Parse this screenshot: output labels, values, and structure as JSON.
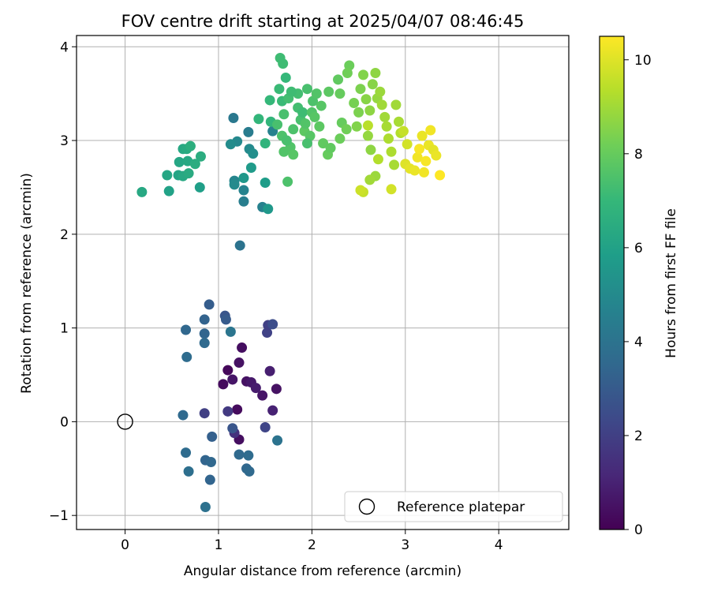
{
  "chart_data": {
    "type": "scatter",
    "title": "FOV centre drift starting at 2025/04/07 08:46:45",
    "xlabel": "Angular distance from reference (arcmin)",
    "ylabel": "Rotation from reference (arcmin)",
    "xlim": [
      -0.52,
      4.75
    ],
    "ylim": [
      -1.15,
      4.12
    ],
    "xticks": [
      0,
      1,
      2,
      3,
      4
    ],
    "yticks": [
      -1,
      0,
      1,
      2,
      3,
      4
    ],
    "grid": true,
    "legend": {
      "placement": "lower-right",
      "label": "Reference platepar"
    },
    "reference_point": {
      "x": 0,
      "y": 0
    },
    "colorbar": {
      "label": "Hours from first FF file",
      "min": 0,
      "max": 10.5,
      "ticks": [
        0,
        2,
        4,
        6,
        8,
        10
      ],
      "colormap": "viridis",
      "colors": [
        "#440154",
        "#482878",
        "#3e4989",
        "#31688e",
        "#26828e",
        "#1f9e89",
        "#35b779",
        "#6ece58",
        "#b5de2b",
        "#fde725"
      ]
    },
    "points": [
      [
        1.1,
        0.55,
        0.2
      ],
      [
        1.05,
        0.4,
        0.3
      ],
      [
        1.22,
        0.63,
        0.5
      ],
      [
        1.25,
        0.79,
        0.4
      ],
      [
        1.15,
        0.45,
        0.6
      ],
      [
        1.3,
        0.43,
        0.5
      ],
      [
        1.35,
        0.42,
        0.7
      ],
      [
        1.4,
        0.36,
        0.8
      ],
      [
        1.47,
        0.28,
        0.6
      ],
      [
        1.62,
        0.35,
        0.5
      ],
      [
        1.55,
        0.54,
        0.9
      ],
      [
        1.58,
        0.12,
        1.0
      ],
      [
        1.2,
        0.13,
        0.3
      ],
      [
        1.22,
        -0.19,
        0.4
      ],
      [
        1.17,
        -0.12,
        1.5
      ],
      [
        1.1,
        0.11,
        1.8
      ],
      [
        0.85,
        0.09,
        2.0
      ],
      [
        1.5,
        -0.06,
        2.2
      ],
      [
        1.15,
        -0.07,
        2.8
      ],
      [
        1.52,
        0.95,
        2.1
      ],
      [
        1.53,
        1.03,
        2.0
      ],
      [
        1.58,
        1.04,
        2.5
      ],
      [
        1.07,
        1.13,
        2.8
      ],
      [
        1.08,
        1.09,
        3.0
      ],
      [
        0.9,
        1.25,
        3.1
      ],
      [
        0.85,
        1.09,
        3.3
      ],
      [
        0.65,
        0.98,
        3.5
      ],
      [
        0.85,
        0.94,
        3.4
      ],
      [
        0.85,
        0.84,
        3.6
      ],
      [
        0.66,
        0.69,
        3.7
      ],
      [
        0.62,
        0.07,
        3.6
      ],
      [
        0.93,
        -0.16,
        3.2
      ],
      [
        0.86,
        -0.41,
        3.4
      ],
      [
        0.92,
        -0.43,
        3.5
      ],
      [
        0.91,
        -0.62,
        3.4
      ],
      [
        0.65,
        -0.33,
        3.7
      ],
      [
        0.68,
        -0.53,
        3.8
      ],
      [
        0.86,
        -0.91,
        3.9
      ],
      [
        1.22,
        -0.35,
        3.6
      ],
      [
        1.32,
        -0.36,
        3.7
      ],
      [
        1.3,
        -0.5,
        3.5
      ],
      [
        1.33,
        -0.53,
        3.6
      ],
      [
        1.63,
        -0.2,
        4.0
      ],
      [
        1.13,
        0.96,
        4.1
      ],
      [
        1.23,
        1.88,
        4.0
      ],
      [
        1.16,
        3.24,
        4.2
      ],
      [
        1.32,
        3.09,
        4.4
      ],
      [
        1.58,
        3.1,
        4.6
      ],
      [
        1.47,
        2.29,
        4.6
      ],
      [
        1.27,
        2.35,
        4.5
      ],
      [
        1.27,
        2.47,
        4.7
      ],
      [
        1.17,
        2.57,
        4.8
      ],
      [
        1.17,
        2.53,
        5.0
      ],
      [
        1.2,
        2.99,
        4.9
      ],
      [
        1.13,
        2.96,
        5.1
      ],
      [
        1.33,
        2.91,
        5.0
      ],
      [
        1.37,
        2.86,
        5.2
      ],
      [
        1.53,
        2.27,
        5.6
      ],
      [
        1.5,
        2.55,
        5.8
      ],
      [
        1.35,
        2.71,
        5.7
      ],
      [
        1.27,
        2.6,
        5.6
      ],
      [
        0.8,
        2.5,
        5.9
      ],
      [
        0.47,
        2.46,
        6.0
      ],
      [
        0.18,
        2.45,
        6.3
      ],
      [
        0.45,
        2.63,
        6.2
      ],
      [
        0.57,
        2.63,
        6.1
      ],
      [
        0.62,
        2.62,
        6.3
      ],
      [
        0.68,
        2.65,
        6.4
      ],
      [
        0.58,
        2.77,
        6.2
      ],
      [
        0.67,
        2.78,
        6.3
      ],
      [
        0.75,
        2.75,
        6.5
      ],
      [
        0.81,
        2.83,
        6.5
      ],
      [
        0.62,
        2.91,
        6.3
      ],
      [
        0.66,
        2.91,
        6.4
      ],
      [
        0.7,
        2.94,
        6.6
      ],
      [
        1.5,
        2.97,
        6.8
      ],
      [
        1.56,
        3.2,
        6.9
      ],
      [
        1.43,
        3.23,
        6.9
      ],
      [
        1.55,
        3.43,
        7.0
      ],
      [
        1.65,
        3.55,
        7.1
      ],
      [
        1.68,
        3.42,
        7.1
      ],
      [
        1.72,
        3.67,
        7.0
      ],
      [
        1.66,
        3.88,
        7.2
      ],
      [
        1.69,
        3.82,
        7.2
      ],
      [
        1.75,
        3.45,
        7.3
      ],
      [
        1.7,
        3.28,
        7.4
      ],
      [
        1.63,
        3.17,
        7.4
      ],
      [
        1.68,
        3.05,
        7.5
      ],
      [
        1.74,
        2.56,
        7.5
      ],
      [
        1.7,
        2.88,
        7.6
      ],
      [
        1.77,
        2.93,
        7.6
      ],
      [
        1.8,
        2.85,
        7.7
      ],
      [
        1.85,
        3.35,
        7.3
      ],
      [
        1.88,
        3.22,
        7.4
      ],
      [
        1.92,
        3.1,
        7.8
      ],
      [
        1.98,
        3.05,
        7.7
      ],
      [
        2.01,
        3.42,
        7.5
      ],
      [
        2.05,
        3.5,
        7.6
      ],
      [
        2.1,
        3.37,
        7.7
      ],
      [
        2.08,
        3.15,
        7.8
      ],
      [
        2.12,
        2.97,
        7.9
      ],
      [
        2.17,
        2.85,
        8.0
      ],
      [
        2.2,
        2.92,
        7.9
      ],
      [
        2.18,
        3.52,
        7.8
      ],
      [
        2.28,
        3.65,
        7.9
      ],
      [
        2.3,
        3.5,
        8.0
      ],
      [
        2.32,
        3.19,
        8.0
      ],
      [
        2.3,
        3.02,
        8.1
      ],
      [
        2.37,
        3.12,
        8.2
      ],
      [
        2.4,
        3.8,
        8.1
      ],
      [
        2.38,
        3.72,
        8.2
      ],
      [
        2.45,
        3.4,
        8.3
      ],
      [
        2.5,
        3.3,
        8.4
      ],
      [
        2.48,
        3.15,
        8.5
      ],
      [
        2.52,
        3.55,
        8.4
      ],
      [
        2.55,
        3.7,
        8.5
      ],
      [
        2.58,
        3.44,
        8.6
      ],
      [
        2.62,
        3.32,
        8.7
      ],
      [
        2.6,
        3.05,
        8.8
      ],
      [
        2.63,
        2.9,
        8.7
      ],
      [
        2.65,
        3.6,
        8.6
      ],
      [
        2.68,
        3.72,
        8.7
      ],
      [
        2.7,
        3.45,
        8.8
      ],
      [
        2.73,
        3.52,
        8.9
      ],
      [
        2.75,
        3.38,
        9.0
      ],
      [
        2.78,
        3.25,
        9.0
      ],
      [
        2.8,
        3.15,
        9.1
      ],
      [
        2.82,
        3.02,
        9.2
      ],
      [
        2.85,
        2.88,
        9.2
      ],
      [
        2.88,
        2.74,
        9.1
      ],
      [
        2.9,
        3.38,
        9.0
      ],
      [
        2.93,
        3.2,
        9.1
      ],
      [
        2.95,
        3.08,
        9.3
      ],
      [
        2.68,
        2.62,
        8.9
      ],
      [
        2.71,
        2.8,
        9.3
      ],
      [
        2.55,
        2.45,
        9.6
      ],
      [
        2.52,
        2.47,
        9.7
      ],
      [
        2.85,
        2.48,
        9.8
      ],
      [
        3.0,
        2.75,
        10.0
      ],
      [
        3.05,
        2.7,
        10.1
      ],
      [
        3.1,
        2.68,
        10.2
      ],
      [
        3.13,
        2.82,
        10.3
      ],
      [
        3.15,
        2.91,
        10.4
      ],
      [
        3.18,
        3.05,
        10.2
      ],
      [
        3.2,
        2.66,
        10.3
      ],
      [
        3.22,
        2.78,
        10.4
      ],
      [
        3.25,
        2.95,
        10.2
      ],
      [
        3.27,
        3.11,
        10.3
      ],
      [
        3.3,
        2.9,
        10.1
      ],
      [
        3.33,
        2.84,
        10.2
      ],
      [
        3.37,
        2.63,
        10.5
      ],
      [
        3.02,
        2.96,
        9.8
      ],
      [
        2.98,
        3.1,
        9.6
      ],
      [
        2.6,
        3.16,
        9.4
      ],
      [
        2.62,
        2.58,
        9.0
      ],
      [
        1.95,
        2.97,
        7.4
      ],
      [
        1.9,
        3.3,
        7.2
      ],
      [
        1.85,
        3.5,
        7.3
      ],
      [
        1.78,
        3.52,
        7.2
      ],
      [
        1.95,
        3.55,
        7.4
      ],
      [
        2.0,
        3.3,
        7.6
      ],
      [
        2.03,
        3.25,
        7.7
      ],
      [
        1.93,
        3.18,
        7.6
      ],
      [
        1.8,
        3.12,
        7.5
      ],
      [
        1.73,
        3.0,
        7.4
      ]
    ]
  }
}
